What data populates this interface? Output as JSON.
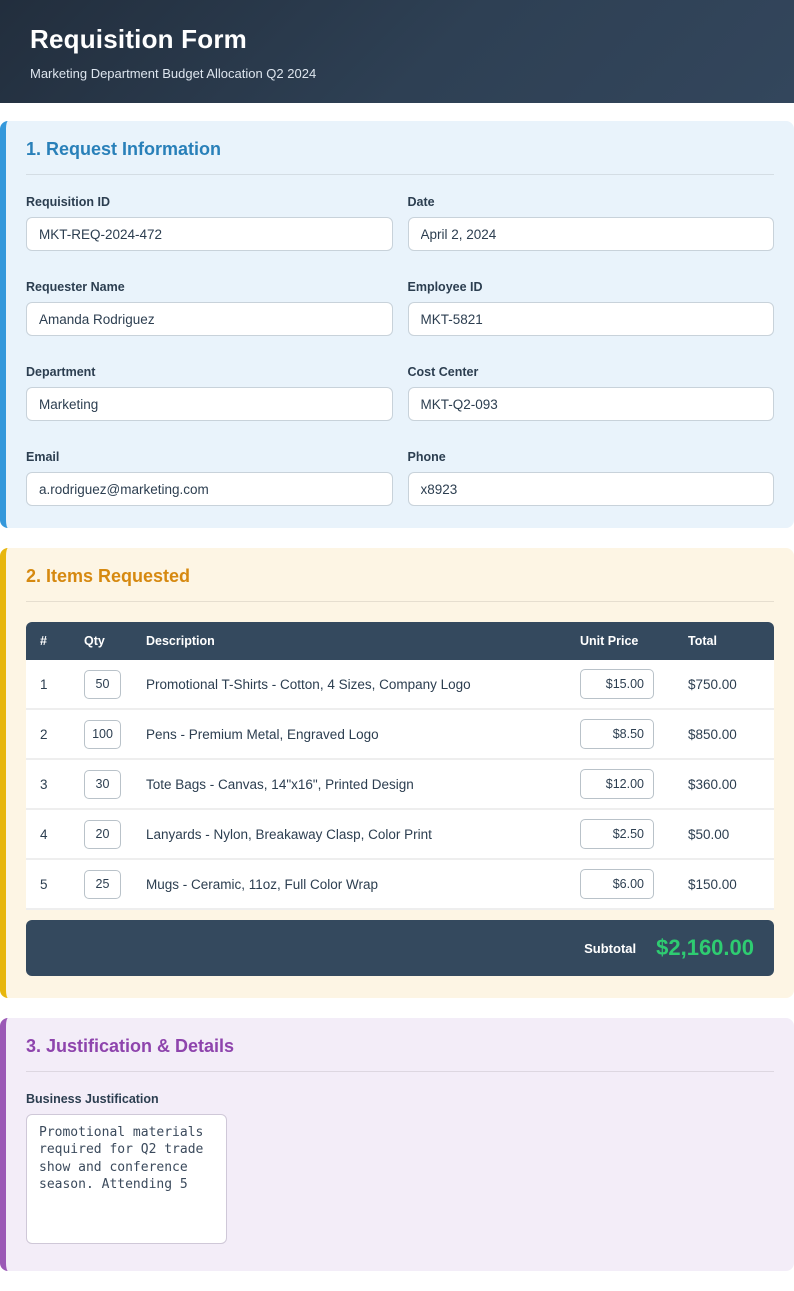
{
  "header": {
    "title": "Requisition Form",
    "subtitle": "Marketing Department Budget Allocation Q2 2024"
  },
  "request_info": {
    "heading": "1. Request Information",
    "fields": [
      {
        "label": "Requisition ID",
        "value": "MKT-REQ-2024-472"
      },
      {
        "label": "Date",
        "value": "April 2, 2024"
      },
      {
        "label": "Requester Name",
        "value": "Amanda Rodriguez"
      },
      {
        "label": "Employee ID",
        "value": "MKT-5821"
      },
      {
        "label": "Department",
        "value": "Marketing"
      },
      {
        "label": "Cost Center",
        "value": "MKT-Q2-093"
      },
      {
        "label": "Email",
        "value": "a.rodriguez@marketing.com"
      },
      {
        "label": "Phone",
        "value": "x8923"
      }
    ]
  },
  "items": {
    "heading": "2. Items Requested",
    "columns": {
      "num": "#",
      "qty": "Qty",
      "description": "Description",
      "unit_price": "Unit Price",
      "total": "Total"
    },
    "rows": [
      {
        "num": "1",
        "qty": "50",
        "description": "Promotional T-Shirts - Cotton, 4 Sizes, Company Logo",
        "unit_price": "$15.00",
        "total": "$750.00"
      },
      {
        "num": "2",
        "qty": "100",
        "description": "Pens - Premium Metal, Engraved Logo",
        "unit_price": "$8.50",
        "total": "$850.00"
      },
      {
        "num": "3",
        "qty": "30",
        "description": "Tote Bags - Canvas, 14\"x16\", Printed Design",
        "unit_price": "$12.00",
        "total": "$360.00"
      },
      {
        "num": "4",
        "qty": "20",
        "description": "Lanyards - Nylon, Breakaway Clasp, Color Print",
        "unit_price": "$2.50",
        "total": "$50.00"
      },
      {
        "num": "5",
        "qty": "25",
        "description": "Mugs - Ceramic, 11oz, Full Color Wrap",
        "unit_price": "$6.00",
        "total": "$150.00"
      }
    ],
    "subtotal_label": "Subtotal",
    "subtotal_value": "$2,160.00"
  },
  "justification": {
    "heading": "3. Justification & Details",
    "business_justification_label": "Business Justification",
    "business_justification_value": "Promotional materials required for Q2 trade show and conference season. Attending 5"
  },
  "colors": {
    "header_navy": "#2c3e50",
    "accent_blue": "#2980b9",
    "accent_yellow_border": "#e7b60d",
    "accent_orange": "#d68910",
    "accent_purple": "#8e44ad",
    "subtotal_green": "#2ecc71"
  }
}
